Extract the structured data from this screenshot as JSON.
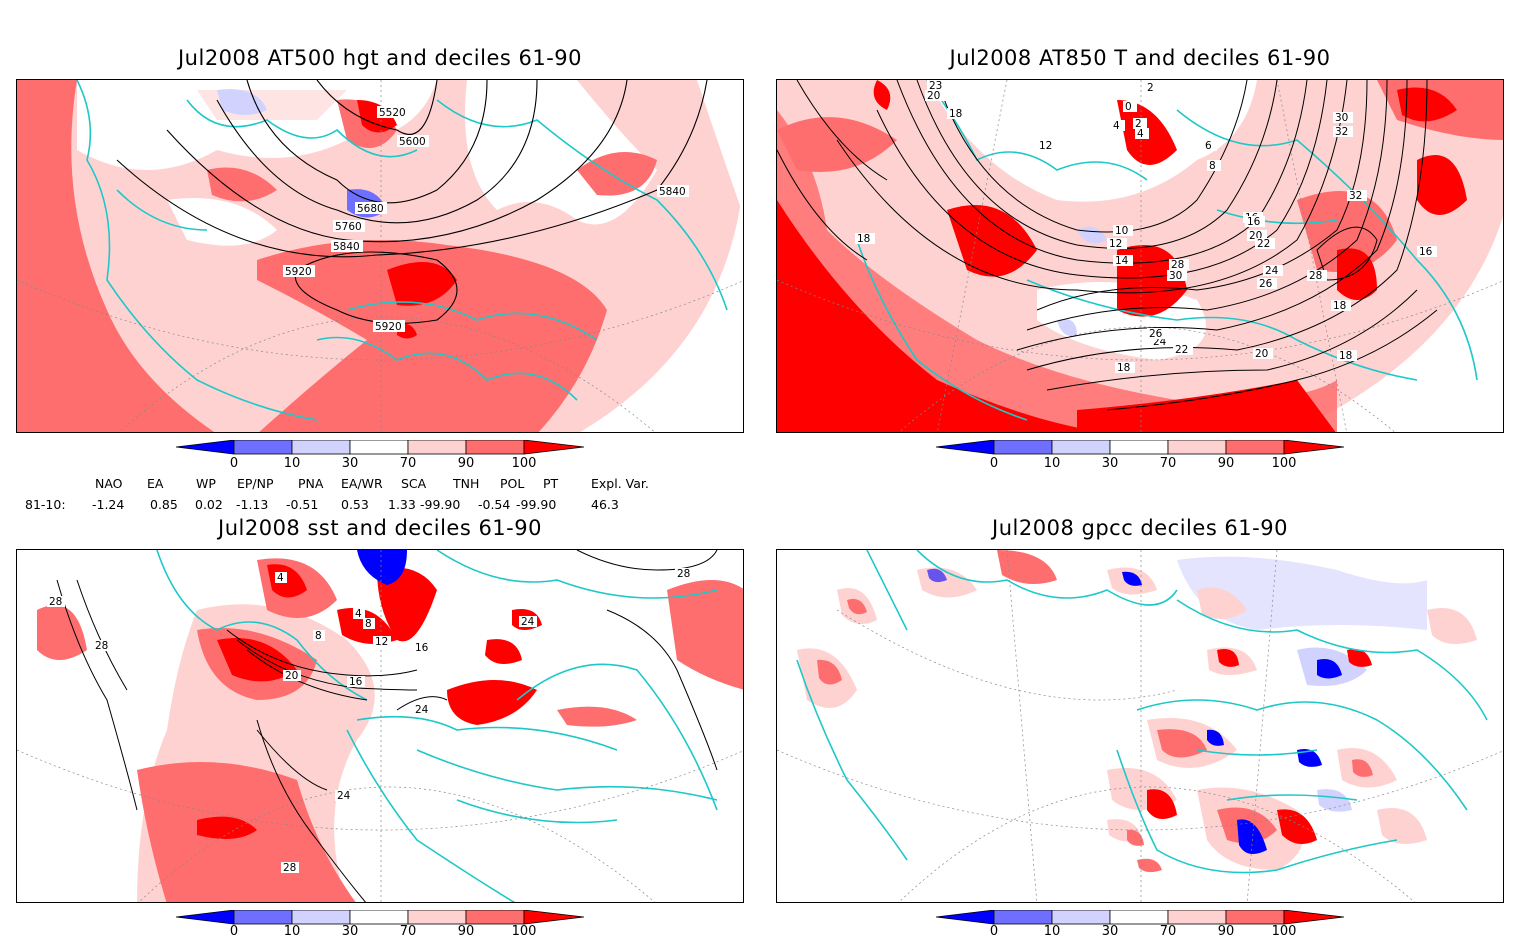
{
  "panels": [
    {
      "title": "Jul2008 AT500 hgt and deciles 61-90",
      "contour_labels": [
        "5520",
        "5600",
        "5680",
        "5760",
        "5840",
        "5840",
        "5920",
        "5920"
      ]
    },
    {
      "title": "Jul2008 AT850 T and deciles 61-90",
      "contour_labels": [
        "2",
        "0",
        "2",
        "4",
        "6",
        "8",
        "10",
        "12",
        "14",
        "16",
        "18",
        "18",
        "18",
        "20",
        "20",
        "22",
        "22",
        "24",
        "24",
        "26",
        "26",
        "28",
        "28",
        "30",
        "30",
        "32",
        "32",
        "16",
        "16",
        "18",
        "18",
        "23",
        "20",
        "18",
        "12",
        "4"
      ]
    },
    {
      "title": "Jul2008 sst and deciles 61-90",
      "contour_labels": [
        "28",
        "28",
        "28",
        "28",
        "24",
        "24",
        "20",
        "16",
        "16",
        "12",
        "8",
        "8",
        "4",
        "4",
        "24"
      ]
    },
    {
      "title": "Jul2008 gpcc deciles 61-90",
      "contour_labels": []
    }
  ],
  "colorbar": {
    "labels": [
      "0",
      "10",
      "30",
      "70",
      "90",
      "100"
    ],
    "colors": [
      "#0000ff",
      "#6e6eff",
      "#d2d2ff",
      "#ffffff",
      "#ffd2d2",
      "#ff6e6e",
      "#ff0000"
    ]
  },
  "teleconnections": {
    "headers": [
      "NAO",
      "EA",
      "WP",
      "EP/NP",
      "PNA",
      "EA/WR",
      "SCA",
      "TNH",
      "POL",
      "PT",
      "Expl. Var."
    ],
    "row_label": "81-10:",
    "values": [
      "-1.24",
      "0.85",
      "0.02",
      "-1.13",
      "-0.51",
      "0.53",
      "1.33",
      "-99.90",
      "-0.54",
      "-99.90",
      "46.3"
    ]
  },
  "colors": {
    "coast": "#1ec8c8",
    "contour": "#000000",
    "grid": "#aaaaaa"
  }
}
